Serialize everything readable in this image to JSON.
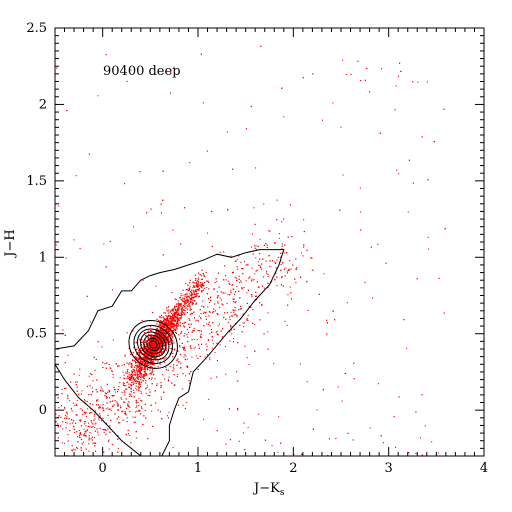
{
  "chart_data": {
    "type": "scatter",
    "title": "",
    "annotation": "90400 deep",
    "xlabel": {
      "main": "J−K",
      "sub": "s"
    },
    "ylabel": "J−H",
    "xlim": [
      -0.5,
      4.0
    ],
    "ylim": [
      -0.3,
      2.5
    ],
    "xticks": [
      {
        "value": 0,
        "label": "0"
      },
      {
        "value": 1,
        "label": "1"
      },
      {
        "value": 2,
        "label": "2"
      },
      {
        "value": 3,
        "label": "3"
      },
      {
        "value": 4,
        "label": "4"
      }
    ],
    "yticks": [
      {
        "value": 0,
        "label": "0"
      },
      {
        "value": 0.5,
        "label": "0.5"
      },
      {
        "value": 1,
        "label": "1"
      },
      {
        "value": 1.5,
        "label": "1.5"
      },
      {
        "value": 2,
        "label": "2"
      },
      {
        "value": 2.5,
        "label": "2.5"
      }
    ],
    "x_minor_step": 0.1,
    "y_minor_step": 0.05,
    "grid": false,
    "legend": "none",
    "series": [
      {
        "kind": "points",
        "color": "#ff0000",
        "count": 5500,
        "points_sample": [
          [
            -0.25,
            -0.13
          ],
          [
            -0.2,
            -0.12
          ],
          [
            -0.18,
            -0.1
          ],
          [
            0.0,
            0.0
          ],
          [
            0.2,
            0.12
          ],
          [
            0.4,
            0.3
          ],
          [
            0.5,
            0.42
          ],
          [
            0.55,
            0.45
          ],
          [
            0.6,
            0.5
          ],
          [
            0.7,
            0.6
          ],
          [
            0.8,
            0.7
          ],
          [
            0.9,
            0.8
          ],
          [
            1.0,
            0.9
          ],
          [
            1.2,
            0.75
          ],
          [
            1.5,
            0.85
          ],
          [
            1.6,
            1.0
          ],
          [
            1.8,
            1.1
          ],
          [
            2.6,
            2.2
          ],
          [
            3.3,
            2.15
          ],
          [
            3.4,
            2.15
          ],
          [
            3.1,
            1.55
          ],
          [
            2.3,
            1.9
          ],
          [
            2.7,
            1.3
          ],
          [
            3.2,
            1.3
          ]
        ],
        "distribution": {
          "core": {
            "x": 0.55,
            "y": 0.43,
            "sx": 0.13,
            "sy": 0.11
          },
          "ridge": {
            "from": [
              0.45,
              0.35
            ],
            "to": [
              1.05,
              0.87
            ]
          },
          "reddened_tail": {
            "from": [
              -0.3,
              -0.15
            ],
            "to": [
              2.0,
              1.05
            ]
          },
          "scatter_extent": {
            "x": [
              -0.5,
              3.6
            ],
            "y": [
              -0.3,
              2.4
            ]
          }
        }
      },
      {
        "kind": "contours",
        "color": "#000000",
        "center": [
          0.53,
          0.43
        ],
        "levels": [
          {
            "points": [
              [
                -0.5,
                0.4
              ],
              [
                -0.3,
                0.42
              ],
              [
                -0.15,
                0.52
              ],
              [
                -0.05,
                0.65
              ],
              [
                0.1,
                0.68
              ],
              [
                0.2,
                0.78
              ],
              [
                0.3,
                0.78
              ],
              [
                0.4,
                0.85
              ],
              [
                0.5,
                0.88
              ],
              [
                0.6,
                0.9
              ],
              [
                0.75,
                0.92
              ],
              [
                0.9,
                0.95
              ],
              [
                1.05,
                0.98
              ],
              [
                1.2,
                1.02
              ],
              [
                1.35,
                1.0
              ],
              [
                1.5,
                1.03
              ],
              [
                1.65,
                1.05
              ],
              [
                1.8,
                1.05
              ],
              [
                1.9,
                1.05
              ],
              [
                1.85,
                0.95
              ],
              [
                1.75,
                0.82
              ],
              [
                1.6,
                0.72
              ],
              [
                1.45,
                0.6
              ],
              [
                1.3,
                0.5
              ],
              [
                1.1,
                0.35
              ],
              [
                0.95,
                0.25
              ],
              [
                0.9,
                0.12
              ],
              [
                0.8,
                0.08
              ],
              [
                0.75,
                0.0
              ],
              [
                0.7,
                -0.1
              ],
              [
                0.7,
                -0.2
              ],
              [
                0.62,
                -0.3
              ],
              [
                0.4,
                -0.3
              ],
              [
                0.2,
                -0.2
              ],
              [
                0.05,
                -0.1
              ],
              [
                -0.1,
                0.0
              ],
              [
                -0.25,
                0.08
              ],
              [
                -0.4,
                0.2
              ],
              [
                -0.5,
                0.3
              ]
            ]
          },
          {
            "rx": 0.24,
            "ry": 0.075
          },
          {
            "rx": 0.19,
            "ry": 0.06
          },
          {
            "rx": 0.15,
            "ry": 0.05
          },
          {
            "rx": 0.12,
            "ry": 0.04
          },
          {
            "rx": 0.09,
            "ry": 0.03
          },
          {
            "rx": 0.06,
            "ry": 0.02
          },
          {
            "rx": 0.035,
            "ry": 0.012
          }
        ],
        "orientation_deg": 48
      }
    ]
  }
}
